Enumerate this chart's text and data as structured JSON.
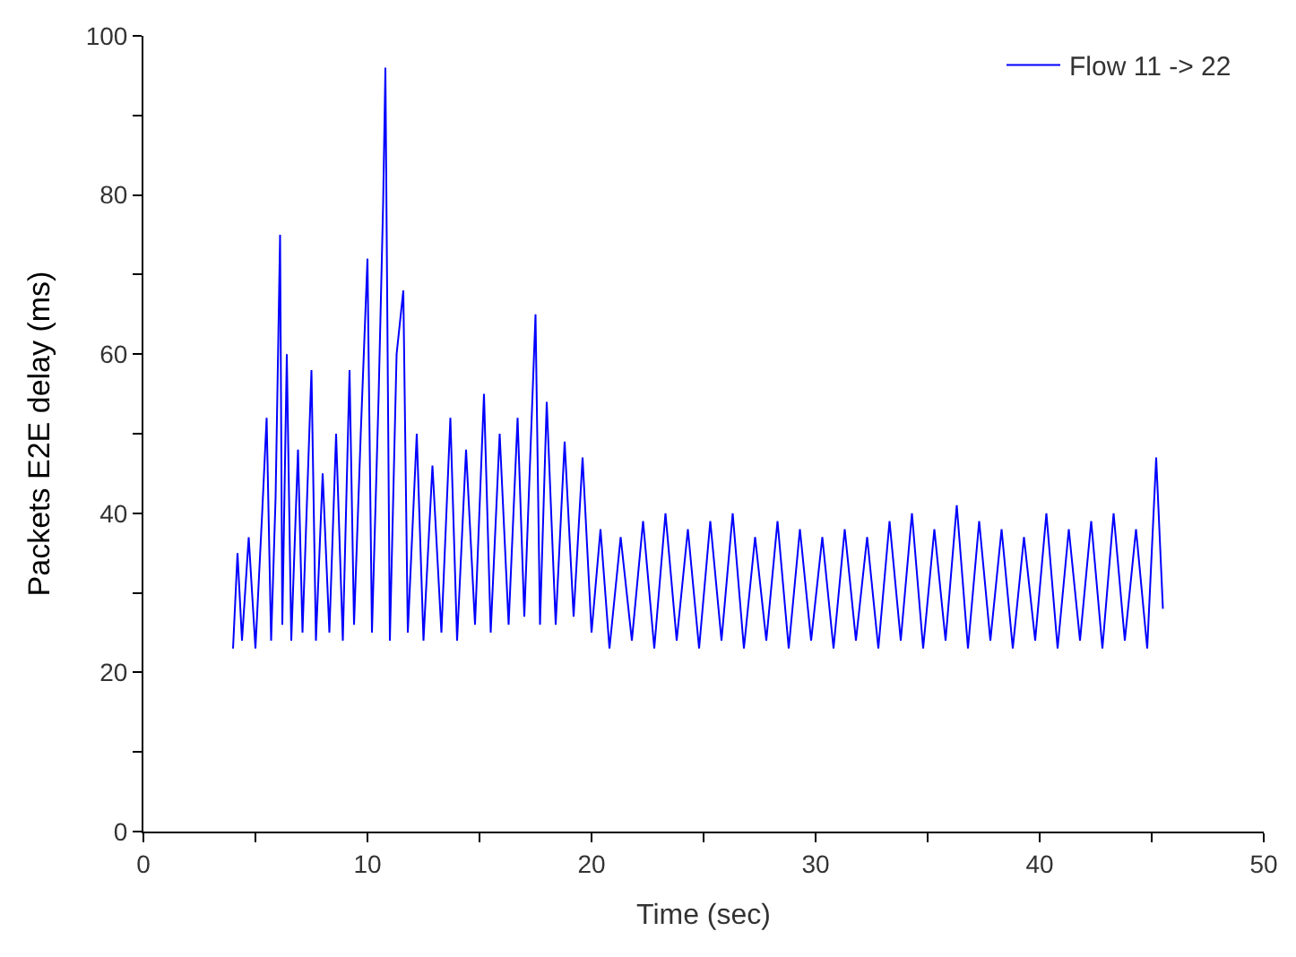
{
  "chart_data": {
    "type": "line",
    "xlabel": "Time (sec)",
    "ylabel": "Packets E2E delay (ms)",
    "xlim": [
      0,
      50
    ],
    "ylim": [
      0,
      100
    ],
    "xticks": [
      0,
      {
        "value": 5,
        "label": null
      },
      10,
      {
        "value": 15,
        "label": null
      },
      20,
      {
        "value": 25,
        "label": null
      },
      30,
      {
        "value": 35,
        "label": null
      },
      40,
      {
        "value": 45,
        "label": null
      },
      50
    ],
    "yticks": [
      0,
      {
        "value": 10,
        "label": null
      },
      20,
      {
        "value": 30,
        "label": null
      },
      40,
      {
        "value": 50,
        "label": null
      },
      60,
      {
        "value": 70,
        "label": null
      },
      80,
      {
        "value": 90,
        "label": null
      },
      100
    ],
    "legend": "top right",
    "marker": "none",
    "line_style": "solid",
    "series": [
      {
        "name": "Flow 11 -> 22",
        "color": "#0000ff",
        "x": [
          4.0,
          4.2,
          4.4,
          4.7,
          5.0,
          5.3,
          5.5,
          5.7,
          5.9,
          6.1,
          6.2,
          6.4,
          6.6,
          6.9,
          7.1,
          7.5,
          7.7,
          8.0,
          8.3,
          8.6,
          8.9,
          9.2,
          9.4,
          9.7,
          10.0,
          10.2,
          10.5,
          10.7,
          10.8,
          11.0,
          11.3,
          11.6,
          11.8,
          12.2,
          12.5,
          12.9,
          13.3,
          13.7,
          14.0,
          14.4,
          14.8,
          15.2,
          15.5,
          15.9,
          16.3,
          16.7,
          17.0,
          17.5,
          17.7,
          18.0,
          18.4,
          18.8,
          19.2,
          19.6,
          20.0,
          20.4,
          20.8,
          21.3,
          21.8,
          22.3,
          22.8,
          23.3,
          23.8,
          24.3,
          24.8,
          25.3,
          25.8,
          26.3,
          26.8,
          27.3,
          27.8,
          28.3,
          28.8,
          29.3,
          29.8,
          30.3,
          30.8,
          31.3,
          31.8,
          32.3,
          32.8,
          33.3,
          33.8,
          34.3,
          34.8,
          35.3,
          35.8,
          36.3,
          36.8,
          37.3,
          37.8,
          38.3,
          38.8,
          39.3,
          39.8,
          40.3,
          40.8,
          41.3,
          41.8,
          42.3,
          42.8,
          43.3,
          43.8,
          44.3,
          44.8,
          45.2,
          45.5
        ],
        "values": [
          23,
          35,
          24,
          37,
          23,
          40,
          52,
          24,
          42,
          75,
          26,
          60,
          24,
          48,
          25,
          58,
          24,
          45,
          25,
          50,
          24,
          58,
          26,
          50,
          72,
          25,
          55,
          79,
          96,
          24,
          60,
          68,
          25,
          50,
          24,
          46,
          25,
          52,
          24,
          48,
          26,
          55,
          25,
          50,
          26,
          52,
          27,
          65,
          26,
          54,
          26,
          49,
          27,
          47,
          25,
          38,
          23,
          37,
          24,
          39,
          23,
          40,
          24,
          38,
          23,
          39,
          24,
          40,
          23,
          37,
          24,
          39,
          23,
          38,
          24,
          37,
          23,
          38,
          24,
          37,
          23,
          39,
          24,
          40,
          23,
          38,
          24,
          41,
          23,
          39,
          24,
          38,
          23,
          37,
          24,
          40,
          23,
          38,
          24,
          39,
          23,
          40,
          24,
          38,
          23,
          47,
          28
        ]
      }
    ]
  }
}
